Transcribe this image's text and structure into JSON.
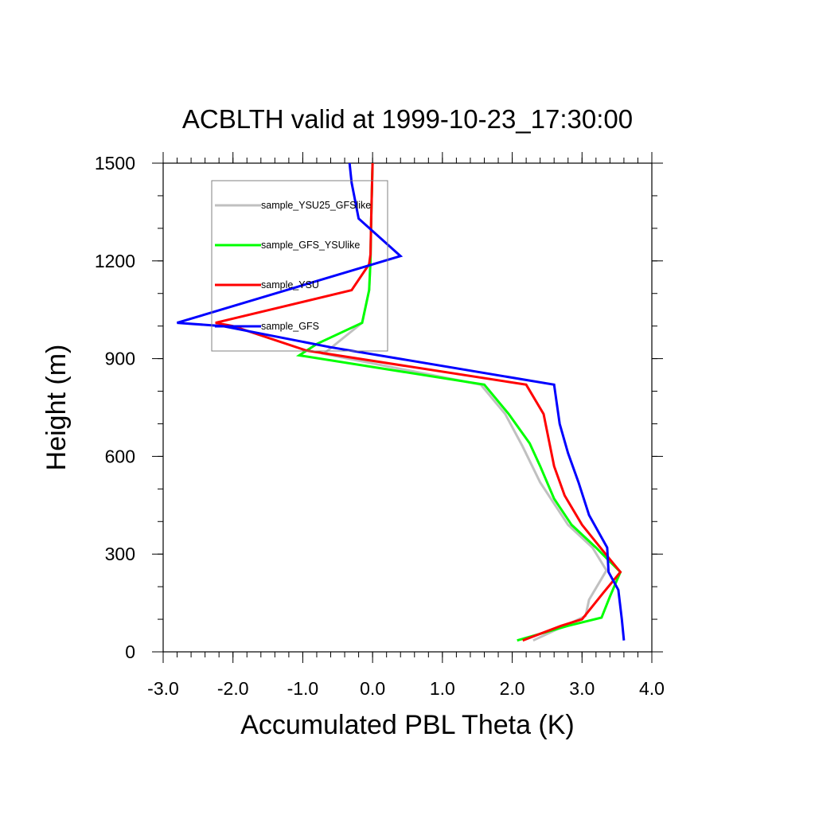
{
  "chart_data": {
    "type": "line",
    "title": "ACBLTH valid at 1999-10-23_17:30:00",
    "xlabel": "Accumulated PBL Theta (K)",
    "ylabel": "Height (m)",
    "xlim": [
      -3.0,
      4.0
    ],
    "ylim": [
      0,
      1500
    ],
    "x_ticks": [
      -3.0,
      -2.0,
      -1.0,
      0.0,
      1.0,
      2.0,
      3.0,
      4.0
    ],
    "x_tick_labels": [
      "-3.0",
      "-2.0",
      "-1.0",
      "0.0",
      "1.0",
      "2.0",
      "3.0",
      "4.0"
    ],
    "y_ticks": [
      0,
      300,
      600,
      900,
      1200,
      1500
    ],
    "y_tick_labels": [
      "0",
      "300",
      "600",
      "900",
      "1200",
      "1500"
    ],
    "x_minor_step": 0.2,
    "y_minor_step": 100,
    "grid": false,
    "legend_position": "top-left (inside)",
    "series": [
      {
        "name": "sample_YSU25_GFSlike",
        "color": "#c0c0c0",
        "points": [
          [
            2.3,
            35
          ],
          [
            2.75,
            80
          ],
          [
            3.05,
            110
          ],
          [
            3.1,
            160
          ],
          [
            3.35,
            250
          ],
          [
            3.15,
            320
          ],
          [
            2.8,
            390
          ],
          [
            2.4,
            520
          ],
          [
            2.15,
            630
          ],
          [
            1.9,
            730
          ],
          [
            1.55,
            820
          ],
          [
            -0.7,
            915
          ],
          [
            -0.15,
            1010
          ],
          [
            -0.05,
            1110
          ],
          [
            -0.03,
            1200
          ],
          [
            -0.02,
            1330
          ],
          [
            0.0,
            1500
          ]
        ]
      },
      {
        "name": "sample_GFS_YSUlike",
        "color": "#00ff00",
        "points": [
          [
            2.07,
            35
          ],
          [
            2.8,
            80
          ],
          [
            3.28,
            105
          ],
          [
            3.4,
            170
          ],
          [
            3.55,
            245
          ],
          [
            3.2,
            320
          ],
          [
            2.85,
            390
          ],
          [
            2.6,
            470
          ],
          [
            2.4,
            570
          ],
          [
            2.25,
            640
          ],
          [
            1.95,
            730
          ],
          [
            1.6,
            820
          ],
          [
            -1.05,
            910
          ],
          [
            -0.8,
            945
          ],
          [
            -0.15,
            1010
          ],
          [
            -0.05,
            1110
          ],
          [
            -0.03,
            1200
          ],
          [
            -0.02,
            1330
          ],
          [
            0.0,
            1500
          ]
        ]
      },
      {
        "name": "sample_YSU",
        "color": "#ff0000",
        "points": [
          [
            2.15,
            35
          ],
          [
            2.7,
            80
          ],
          [
            3.0,
            100
          ],
          [
            3.3,
            180
          ],
          [
            3.55,
            245
          ],
          [
            3.3,
            310
          ],
          [
            3.0,
            390
          ],
          [
            2.75,
            480
          ],
          [
            2.6,
            570
          ],
          [
            2.45,
            730
          ],
          [
            2.2,
            820
          ],
          [
            -0.95,
            925
          ],
          [
            -2.0,
            1000
          ],
          [
            -2.25,
            1010
          ],
          [
            -0.3,
            1110
          ],
          [
            -0.05,
            1190
          ],
          [
            -0.03,
            1220
          ],
          [
            -0.02,
            1330
          ],
          [
            0.0,
            1500
          ]
        ]
      },
      {
        "name": "sample_GFS",
        "color": "#0000ff",
        "points": [
          [
            3.6,
            35
          ],
          [
            3.57,
            100
          ],
          [
            3.52,
            190
          ],
          [
            3.38,
            245
          ],
          [
            3.36,
            320
          ],
          [
            3.1,
            420
          ],
          [
            2.95,
            520
          ],
          [
            2.8,
            610
          ],
          [
            2.68,
            700
          ],
          [
            2.6,
            820
          ],
          [
            -0.6,
            935
          ],
          [
            -2.15,
            1000
          ],
          [
            -2.8,
            1010
          ],
          [
            0.4,
            1215
          ],
          [
            -0.2,
            1330
          ],
          [
            -0.3,
            1440
          ],
          [
            -0.33,
            1500
          ]
        ]
      }
    ]
  }
}
